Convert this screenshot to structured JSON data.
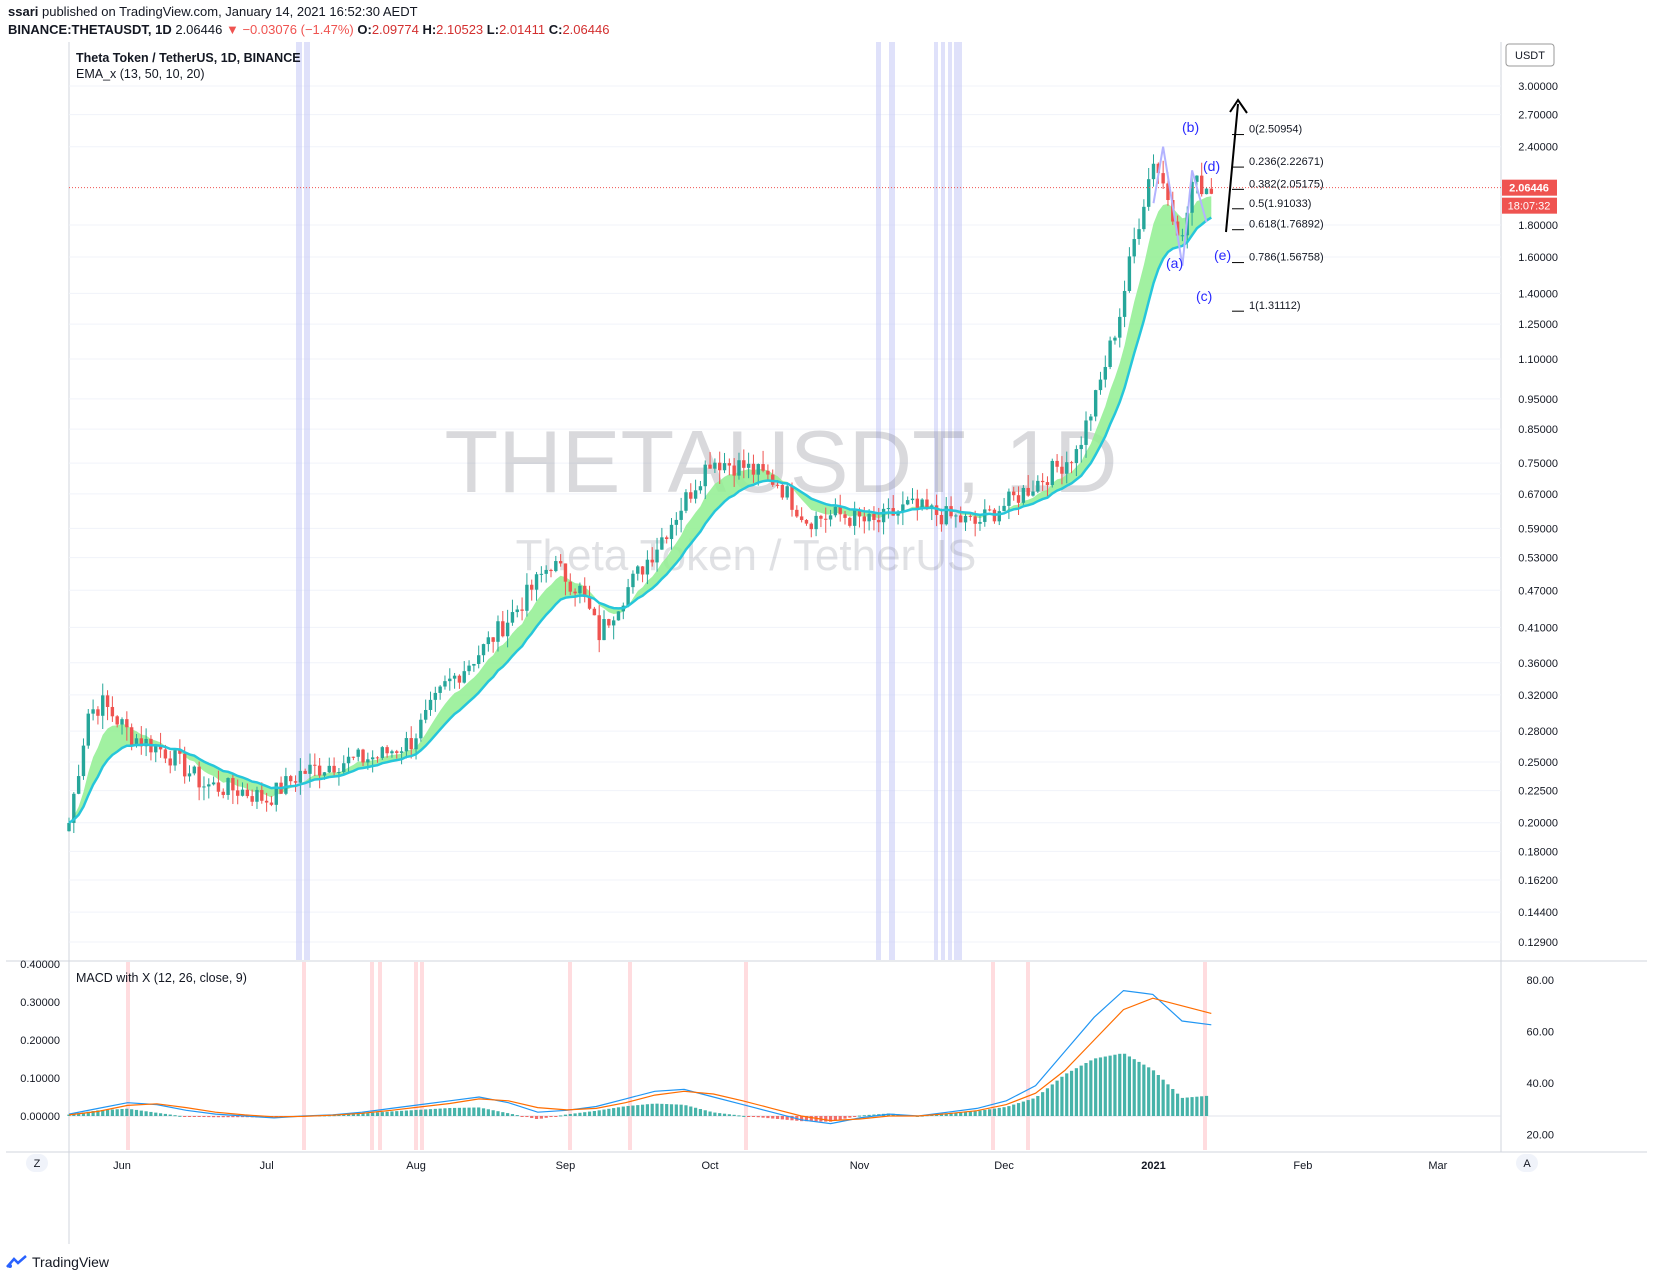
{
  "header": {
    "publisher_prefix": "ssari",
    "publisher_text": " published on TradingView.com, January 14, 2021 16:52:30 AEDT",
    "symbol_line": "BINANCE:THETAUSDT, 1D",
    "last": "2.06446",
    "change": "−0.03076 (−1.47%)",
    "o_label": "O:",
    "o": "2.09774",
    "h_label": "H:",
    "h": "2.10523",
    "l_label": "L:",
    "l": "2.01411",
    "c_label": "C:",
    "c": "2.06446"
  },
  "legend": {
    "title": "Theta Token / TetherUS, 1D, BINANCE",
    "indicator": "EMA_x (13, 50, 10, 20)",
    "macd": "MACD with X (12, 26, close, 9)"
  },
  "watermark": {
    "ticker": "THETAUSDT, 1D",
    "name": "Theta Token / TetherUS"
  },
  "price_axis": {
    "currency": "USDT",
    "last_price": "2.06446",
    "countdown": "18:07:32"
  },
  "footer": {
    "brand": "TradingView",
    "z_button": "Z",
    "a_button": "A"
  },
  "colors": {
    "up": "#26a69a",
    "down": "#ef5350",
    "ema_fast": "#26c6da",
    "ribbon": "#90ee90",
    "macd": "#2196f3",
    "signal": "#ff6d00",
    "fib_arrow": "#000000",
    "wave_labels": "#2a2aff"
  },
  "annotations": {
    "waves": [
      "(a)",
      "(b)",
      "(c)",
      "(d)",
      "(e)"
    ],
    "fib_levels": [
      "0(2.50954)",
      "0.236(2.22671)",
      "0.382(2.05175)",
      "0.5(1.91033)",
      "0.618(1.76892)",
      "0.786(1.56758)",
      "1(1.31112)"
    ]
  },
  "chart_data": [
    {
      "type": "candlestick",
      "title": "Theta Token / TetherUS, 1D, BINANCE",
      "scale": "log",
      "y_ticks": [
        "3.00000",
        "2.70000",
        "2.40000",
        "2.06446",
        "1.80000",
        "1.60000",
        "1.40000",
        "1.25000",
        "1.10000",
        "0.95000",
        "0.85000",
        "0.75000",
        "0.67000",
        "0.59000",
        "0.53000",
        "0.47000",
        "0.41000",
        "0.36000",
        "0.32000",
        "0.28000",
        "0.25000",
        "0.22500",
        "0.20000",
        "0.18000",
        "0.16200",
        "0.14400",
        "0.12900"
      ],
      "x_ticks": [
        "Jun",
        "Jul",
        "Aug",
        "Sep",
        "Oct",
        "Nov",
        "Dec",
        "2021",
        "Feb",
        "Mar"
      ],
      "series": [
        {
          "name": "THETAUSDT",
          "close_path": [
            [
              "May 21",
              0.2
            ],
            [
              "May 25",
              0.3
            ],
            [
              "May 28",
              0.31
            ],
            [
              "Jun 3",
              0.275
            ],
            [
              "Jun 10",
              0.26
            ],
            [
              "Jun 18",
              0.23
            ],
            [
              "Jun 26",
              0.225
            ],
            [
              "Jul 1",
              0.218
            ],
            [
              "Jul 8",
              0.24
            ],
            [
              "Jul 16",
              0.25
            ],
            [
              "Jul 24",
              0.255
            ],
            [
              "Jul 31",
              0.27
            ],
            [
              "Aug 7",
              0.33
            ],
            [
              "Aug 15",
              0.38
            ],
            [
              "Aug 22",
              0.44
            ],
            [
              "Aug 29",
              0.52
            ],
            [
              "Sep 4",
              0.47
            ],
            [
              "Sep 8",
              0.4
            ],
            [
              "Sep 12",
              0.45
            ],
            [
              "Sep 19",
              0.54
            ],
            [
              "Sep 25",
              0.64
            ],
            [
              "Oct 1",
              0.76
            ],
            [
              "Oct 8",
              0.74
            ],
            [
              "Oct 15",
              0.7
            ],
            [
              "Oct 21",
              0.61
            ],
            [
              "Oct 28",
              0.62
            ],
            [
              "Nov 4",
              0.6
            ],
            [
              "Nov 11",
              0.64
            ],
            [
              "Nov 18",
              0.62
            ],
            [
              "Nov 25",
              0.6
            ],
            [
              "Dec 2",
              0.65
            ],
            [
              "Dec 9",
              0.71
            ],
            [
              "Dec 16",
              0.78
            ],
            [
              "Dec 20",
              0.95
            ],
            [
              "Dec 25",
              1.3
            ],
            [
              "Dec 28",
              1.7
            ],
            [
              "Jan 1",
              2.3
            ],
            [
              "Jan 4",
              2.0
            ],
            [
              "Jan 7",
              1.7
            ],
            [
              "Jan 9",
              2.1
            ],
            [
              "Jan 13",
              2.064
            ]
          ]
        }
      ]
    },
    {
      "type": "line",
      "title": "MACD with X (12, 26, close, 9)",
      "y_ticks_left": [
        "0.40000",
        "0.30000",
        "0.20000",
        "0.10000",
        "0.00000"
      ],
      "y_ticks_right": [
        "80.00",
        "60.00",
        "40.00",
        "20.00"
      ],
      "series": [
        {
          "values": [
            0.005,
            0.02,
            0.035,
            0.03,
            0.015,
            0.005,
            0.0,
            -0.005,
            0.0,
            0.003,
            0.01,
            0.02,
            0.03,
            0.04,
            0.05,
            0.035,
            0.01,
            0.015,
            0.025,
            0.045,
            0.065,
            0.07,
            0.05,
            0.03,
            0.01,
            -0.01,
            -0.02,
            -0.005,
            0.005,
            0.0,
            0.01,
            0.02,
            0.04,
            0.08,
            0.17,
            0.26,
            0.33,
            0.32,
            0.25,
            0.24
          ]
        },
        {
          "values": [
            0.003,
            0.012,
            0.028,
            0.032,
            0.022,
            0.01,
            0.003,
            -0.002,
            -0.001,
            0.002,
            0.007,
            0.015,
            0.024,
            0.033,
            0.045,
            0.04,
            0.022,
            0.016,
            0.02,
            0.035,
            0.055,
            0.065,
            0.058,
            0.04,
            0.02,
            0.0,
            -0.012,
            -0.008,
            0.0,
            0.0,
            0.006,
            0.014,
            0.03,
            0.06,
            0.12,
            0.2,
            0.28,
            0.31,
            0.29,
            0.27
          ]
        }
      ]
    }
  ]
}
